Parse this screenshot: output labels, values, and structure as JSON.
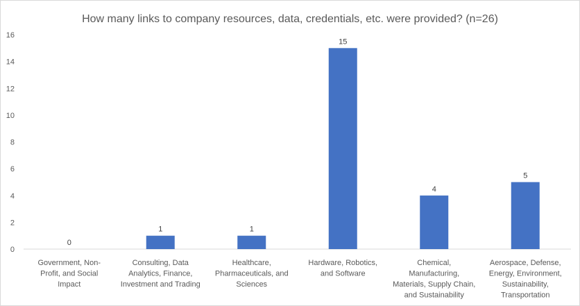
{
  "chart_data": {
    "type": "bar",
    "title": "How many links to company resources, data, credentials, etc. were provided? (n=26)",
    "categories": [
      [
        "Government, Non-",
        "Profit, and Social",
        "Impact"
      ],
      [
        "Consulting, Data",
        "Analytics, Finance,",
        "Investment and Trading"
      ],
      [
        "Healthcare,",
        "Pharmaceuticals, and",
        "Sciences"
      ],
      [
        "Hardware, Robotics,",
        "and Software"
      ],
      [
        "Chemical,",
        "Manufacturing,",
        "Materials, Supply Chain,",
        "and Sustainability"
      ],
      [
        "Aerospace, Defense,",
        "Energy, Environment,",
        "Sustainability,",
        "Transportation"
      ]
    ],
    "values": [
      0,
      1,
      1,
      15,
      4,
      5
    ],
    "data_labels": [
      "0",
      "1",
      "1",
      "15",
      "4",
      "5"
    ],
    "ylim": [
      0,
      16
    ],
    "yticks": [
      "0",
      "2",
      "4",
      "6",
      "8",
      "10",
      "12",
      "14",
      "16"
    ],
    "bar_color": "#4472c4",
    "grid": false,
    "legend": "none"
  }
}
